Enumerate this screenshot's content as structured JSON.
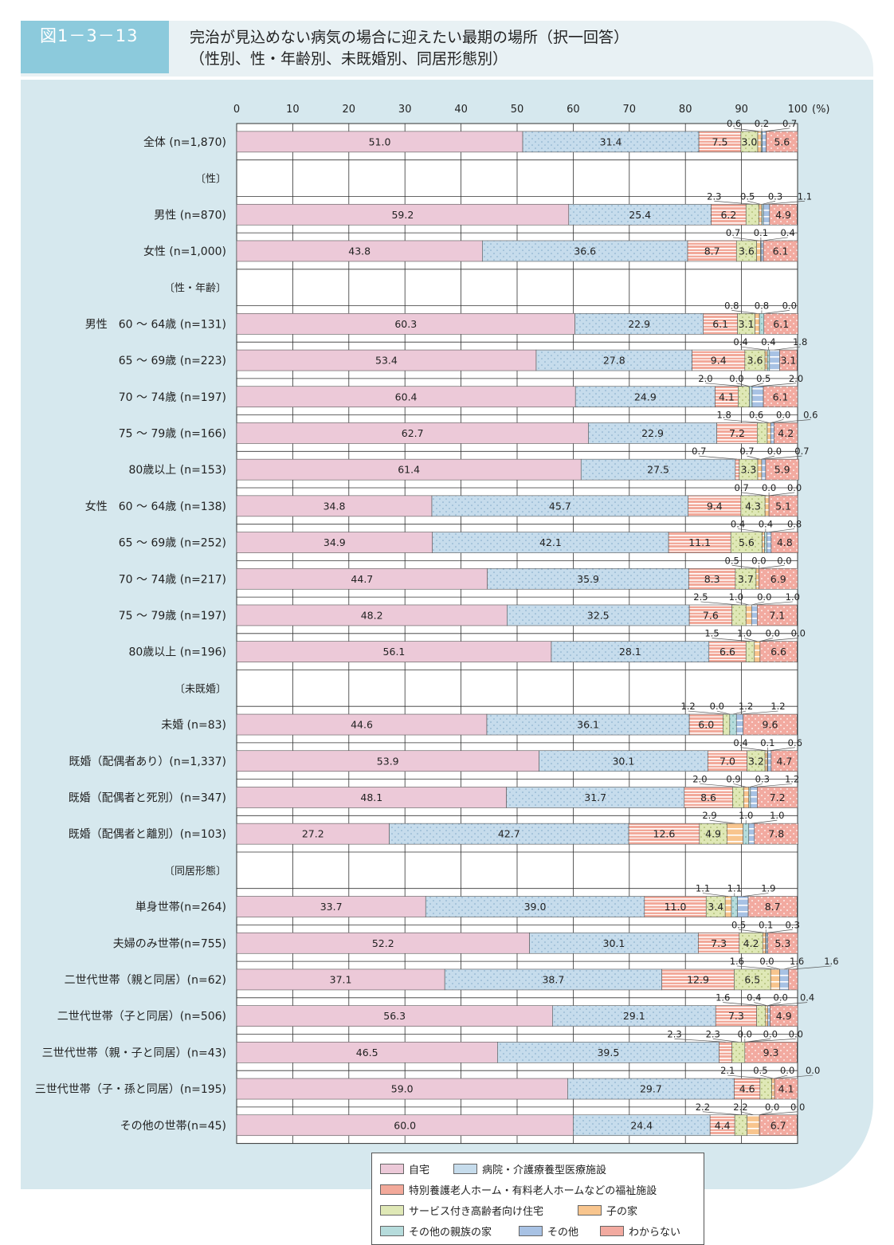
{
  "header": {
    "figure_label": "図1－3－13",
    "title_line1": "完治が見込めない病気の場合に迎えたい最期の場所（択一回答）",
    "title_line2": "（性別、性・年齢別、未既婚別、同居形態別）"
  },
  "colors": {
    "自宅": "#ecc9d8",
    "病院・介護療養型医療施設": "#c6dcec",
    "特別養護老人ホーム・有料老人ホームなどの福祉施設": "#f2a99a",
    "サービス付き高齢者向け住宅": "#dfe8b6",
    "子の家": "#f8c58e",
    "その他の親族の家": "#b6dcdc",
    "その他": "#a8c2e4",
    "わからない": "#f2aaa0"
  },
  "chart_data": {
    "type": "bar",
    "orientation": "horizontal",
    "stacked": true,
    "unit": "(%)",
    "xlim": [
      0,
      100
    ],
    "x_ticks": [
      "0",
      "10",
      "20",
      "30",
      "40",
      "50",
      "60",
      "70",
      "80",
      "90",
      "100"
    ],
    "categories_legend": [
      "自宅",
      "病院・介護療養型医療施設",
      "特別養護老人ホーム・有料老人ホームなどの福祉施設",
      "サービス付き高齢者向け住宅",
      "子の家",
      "その他の親族の家",
      "その他",
      "わからない"
    ],
    "rows": [
      {
        "label": "全体 (n=1,870)",
        "values": [
          51.0,
          31.4,
          7.5,
          3.0,
          0.6,
          0.2,
          0.7,
          5.6
        ]
      },
      {
        "section": "〔性〕"
      },
      {
        "label": "男性 (n=870)",
        "values": [
          59.2,
          25.4,
          6.2,
          2.3,
          0.5,
          0.3,
          1.1,
          4.9
        ]
      },
      {
        "label": "女性 (n=1,000)",
        "values": [
          43.8,
          36.6,
          8.7,
          3.6,
          0.7,
          0.1,
          0.4,
          6.1
        ]
      },
      {
        "section": "〔性・年齢〕"
      },
      {
        "label": "男性　60 ～ 64歳 (n=131)",
        "values": [
          60.3,
          22.9,
          6.1,
          3.1,
          0.8,
          0.8,
          0.0,
          6.1
        ]
      },
      {
        "label": "65 ～ 69歳 (n=223)",
        "values": [
          53.4,
          27.8,
          9.4,
          3.6,
          0.4,
          0.4,
          1.8,
          3.1
        ]
      },
      {
        "label": "70 ～ 74歳 (n=197)",
        "values": [
          60.4,
          24.9,
          4.1,
          2.0,
          0.0,
          0.5,
          2.0,
          6.1
        ]
      },
      {
        "label": "75 ～ 79歳 (n=166)",
        "values": [
          62.7,
          22.9,
          7.2,
          1.8,
          0.6,
          0.0,
          0.6,
          4.2
        ]
      },
      {
        "label": "80歳以上 (n=153)",
        "values": [
          61.4,
          27.5,
          0.7,
          3.3,
          0.7,
          0.0,
          0.7,
          5.9
        ]
      },
      {
        "label": "女性　60 ～ 64歳 (n=138)",
        "values": [
          34.8,
          45.7,
          9.4,
          4.3,
          0.7,
          0.0,
          0.0,
          5.1
        ]
      },
      {
        "label": "65 ～ 69歳 (n=252)",
        "values": [
          34.9,
          42.1,
          11.1,
          5.6,
          0.4,
          0.4,
          0.8,
          4.8
        ]
      },
      {
        "label": "70 ～ 74歳 (n=217)",
        "values": [
          44.7,
          35.9,
          8.3,
          3.7,
          0.5,
          0.0,
          0.0,
          6.9
        ]
      },
      {
        "label": "75 ～ 79歳 (n=197)",
        "values": [
          48.2,
          32.5,
          7.6,
          2.5,
          1.0,
          0.0,
          1.0,
          7.1
        ]
      },
      {
        "label": "80歳以上 (n=196)",
        "values": [
          56.1,
          28.1,
          6.6,
          1.5,
          1.0,
          0.0,
          0.0,
          6.6
        ]
      },
      {
        "section": "〔未既婚〕"
      },
      {
        "label": "未婚 (n=83)",
        "values": [
          44.6,
          36.1,
          6.0,
          1.2,
          0.0,
          1.2,
          1.2,
          9.6
        ]
      },
      {
        "label": "既婚（配偶者あり）(n=1,337)",
        "values": [
          53.9,
          30.1,
          7.0,
          3.2,
          0.4,
          0.1,
          0.6,
          4.7
        ]
      },
      {
        "label": "既婚（配偶者と死別）(n=347)",
        "values": [
          48.1,
          31.7,
          8.6,
          2.0,
          0.9,
          0.3,
          1.2,
          7.2
        ]
      },
      {
        "label": "既婚（配偶者と離別）(n=103)",
        "values": [
          27.2,
          42.7,
          12.6,
          4.9,
          2.9,
          1.0,
          1.0,
          7.8
        ]
      },
      {
        "section": "〔同居形態〕"
      },
      {
        "label": "単身世帯(n=264)",
        "values": [
          33.7,
          39.0,
          11.0,
          3.4,
          1.1,
          1.1,
          1.9,
          8.7
        ]
      },
      {
        "label": "夫婦のみ世帯(n=755)",
        "values": [
          52.2,
          30.1,
          7.3,
          4.2,
          0.5,
          0.1,
          0.3,
          5.3
        ]
      },
      {
        "label": "二世代世帯（親と同居）(n=62)",
        "values": [
          37.1,
          38.7,
          12.9,
          6.5,
          1.6,
          0.0,
          1.6,
          1.6
        ]
      },
      {
        "label": "二世代世帯（子と同居）(n=506)",
        "values": [
          56.3,
          29.1,
          7.3,
          1.6,
          0.4,
          0.0,
          0.4,
          4.9
        ]
      },
      {
        "label": "三世代世帯（親・子と同居）(n=43)",
        "values": [
          46.5,
          39.5,
          2.3,
          2.3,
          0.0,
          0.0,
          0.0,
          9.3
        ]
      },
      {
        "label": "三世代世帯（子・孫と同居）(n=195)",
        "values": [
          59.0,
          29.7,
          4.6,
          2.1,
          0.5,
          0.0,
          0.0,
          4.1
        ]
      },
      {
        "label": "その他の世帯(n=45)",
        "values": [
          60.0,
          24.4,
          4.4,
          2.2,
          2.2,
          0.0,
          0.0,
          6.7
        ]
      }
    ]
  }
}
